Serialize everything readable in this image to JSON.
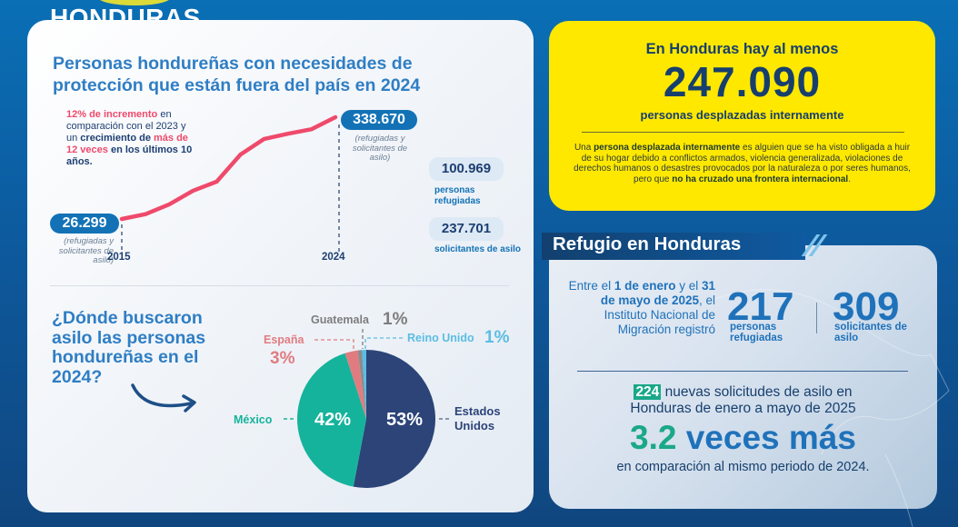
{
  "header": {
    "title": "HONDURAS"
  },
  "line_section": {
    "title": "Personas hondureñas con necesidades de protección que están fuera del país en 2024",
    "note": {
      "part1_pink": "12% de incremento",
      "part2": " en comparación con el 2023 y un ",
      "part3_bold": "crecimiento de ",
      "part4_pink": "más de 12 veces",
      "part5_bold": " en los últimos 10 años."
    },
    "start_value": "26.299",
    "start_subnote": "(refugiadas y solicitantes de asilo)",
    "start_year": "2015",
    "end_value": "338.670",
    "end_subnote": "(refugiadas y solicitantes de asilo)",
    "end_year": "2024",
    "breakdown": [
      {
        "value": "100.969",
        "label": "personas refugiadas"
      },
      {
        "value": "237.701",
        "label": "solicitantes de asilo"
      }
    ],
    "line_color": "#ef4a6b"
  },
  "pie_section": {
    "question": "¿Dónde buscaron asilo las personas hondureñas en el 2024?"
  },
  "chart_data": [
    {
      "type": "line",
      "title": "Personas hondureñas con necesidades de protección que están fuera del país",
      "x": [
        2015,
        2016,
        2017,
        2018,
        2019,
        2020,
        2021,
        2022,
        2023,
        2024
      ],
      "series": [
        {
          "name": "Refugiadas y solicitantes de asilo",
          "values": [
            26299,
            41000,
            71000,
            113000,
            141000,
            224000,
            272000,
            288000,
            302000,
            338670
          ]
        }
      ],
      "xlabel": "",
      "ylabel": "",
      "tick_labels": [
        "2015",
        "2024"
      ],
      "ylim": [
        0,
        350000
      ],
      "grid": false
    },
    {
      "type": "pie",
      "title": "¿Dónde buscaron asilo las personas hondureñas en el 2024?",
      "slices": [
        {
          "label": "Estados Unidos",
          "value": 53,
          "display": "53%",
          "color": "#2c4478"
        },
        {
          "label": "México",
          "value": 42,
          "display": "42%",
          "color": "#16b39c"
        },
        {
          "label": "España",
          "value": 3,
          "display": "3%",
          "color": "#e07c80"
        },
        {
          "label": "Guatemala",
          "value": 1,
          "display": "1%",
          "color": "#8c8c8c"
        },
        {
          "label": "Reino Unido",
          "value": 1,
          "display": "1%",
          "color": "#5bbde3"
        }
      ]
    }
  ],
  "idp_card": {
    "line1": "En Honduras hay al menos",
    "number": "247.090",
    "line2": "personas desplazadas internamente",
    "definition": {
      "p1": "Una ",
      "b1": "persona desplazada internamente",
      "p2": " es alguien que se ha visto obligada a huir de su hogar debido a conflictos armados, violencia generalizada, violaciones de derechos humanos o desastres provocados por la naturaleza o por seres humanos, pero que ",
      "b2": "no ha cruzado una frontera internacional",
      "p3": "."
    }
  },
  "refugio": {
    "title": "Refugio en Honduras",
    "intro": {
      "p1": "Entre el ",
      "b1": "1 de enero",
      "p2": " y el ",
      "b2": "31 de mayo de 2025",
      "p3": ", el Instituto Nacional de Migración registró"
    },
    "stats": [
      {
        "value": "217",
        "label": "personas refugiadas"
      },
      {
        "value": "309",
        "label": "solicitantes de asilo"
      }
    ],
    "new_requests": {
      "badge": "224",
      "text1": " nuevas solicitudes de asilo en",
      "text2": "Honduras de enero a mayo de 2025"
    },
    "multiplier": {
      "number": "3.2",
      "text": "veces más"
    },
    "comparison": "en comparación al mismo periodo de 2024."
  }
}
